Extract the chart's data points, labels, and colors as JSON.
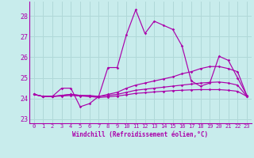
{
  "xlabel": "Windchill (Refroidissement éolien,°C)",
  "bg_color": "#c8ecec",
  "grid_color": "#b0d8d8",
  "line_color": "#aa00aa",
  "x": [
    0,
    1,
    2,
    3,
    4,
    5,
    6,
    7,
    8,
    9,
    10,
    11,
    12,
    13,
    14,
    15,
    16,
    17,
    18,
    19,
    20,
    21,
    22,
    23
  ],
  "line1": [
    24.2,
    24.1,
    24.1,
    24.5,
    24.5,
    23.6,
    23.75,
    24.1,
    25.5,
    25.5,
    27.1,
    28.3,
    27.15,
    27.75,
    27.55,
    27.35,
    26.55,
    24.85,
    24.6,
    24.75,
    26.05,
    25.85,
    25.0,
    24.15
  ],
  "line2": [
    24.2,
    24.1,
    24.1,
    24.15,
    24.2,
    24.15,
    24.15,
    24.1,
    24.2,
    24.3,
    24.5,
    24.65,
    24.75,
    24.85,
    24.95,
    25.05,
    25.2,
    25.3,
    25.45,
    25.55,
    25.55,
    25.45,
    25.3,
    24.15
  ],
  "line3": [
    24.2,
    24.1,
    24.1,
    24.15,
    24.2,
    24.15,
    24.1,
    24.1,
    24.15,
    24.2,
    24.3,
    24.4,
    24.45,
    24.5,
    24.55,
    24.6,
    24.65,
    24.7,
    24.75,
    24.78,
    24.8,
    24.75,
    24.65,
    24.1
  ],
  "line4": [
    24.2,
    24.1,
    24.1,
    24.12,
    24.15,
    24.12,
    24.1,
    24.05,
    24.08,
    24.12,
    24.18,
    24.25,
    24.28,
    24.32,
    24.35,
    24.38,
    24.4,
    24.42,
    24.43,
    24.43,
    24.43,
    24.4,
    24.35,
    24.1
  ],
  "ylim": [
    22.8,
    28.7
  ],
  "yticks": [
    23,
    24,
    25,
    26,
    27,
    28
  ],
  "xlim": [
    -0.5,
    23.5
  ],
  "xticks": [
    0,
    1,
    2,
    3,
    4,
    5,
    6,
    7,
    8,
    9,
    10,
    11,
    12,
    13,
    14,
    15,
    16,
    17,
    18,
    19,
    20,
    21,
    22,
    23
  ]
}
